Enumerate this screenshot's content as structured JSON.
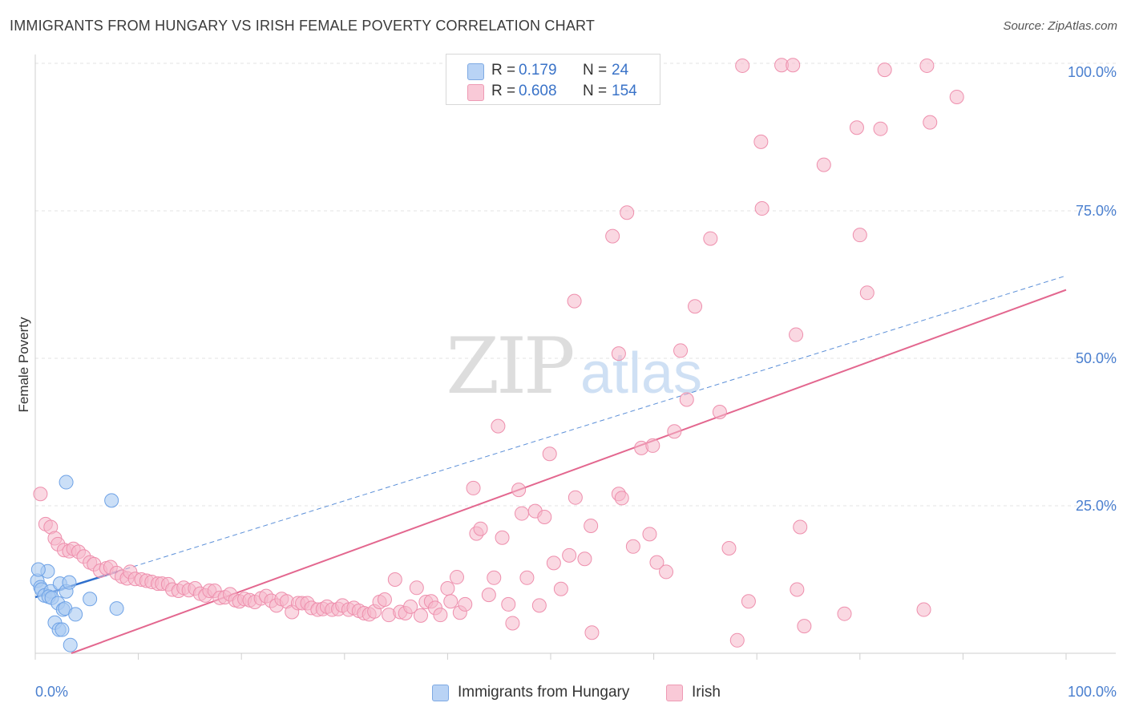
{
  "title": "IMMIGRANTS FROM HUNGARY VS IRISH FEMALE POVERTY CORRELATION CHART",
  "source": "Source: ZipAtlas.com",
  "watermark": {
    "zip": "ZIP",
    "atlas": "atlas"
  },
  "legend_top": [
    {
      "r_label": "R =",
      "r_value": "0.179",
      "n_label": "N =",
      "n_value": "24",
      "color": "#a9c9f2"
    },
    {
      "r_label": "R =",
      "r_value": "0.608",
      "n_label": "N =",
      "n_value": "154",
      "color": "#f5b8cb"
    }
  ],
  "legend_bottom": [
    {
      "label": "Immigrants from Hungary",
      "color": "#a9c9f2"
    },
    {
      "label": "Irish",
      "color": "#f5b8cb"
    }
  ],
  "chart_data": {
    "type": "scatter",
    "title": "IMMIGRANTS FROM HUNGARY VS IRISH FEMALE POVERTY CORRELATION CHART",
    "xlabel": "",
    "ylabel": "Female Poverty",
    "xlim": [
      0,
      100
    ],
    "ylim": [
      0,
      100
    ],
    "x_tick_labels": [
      "0.0%",
      "100.0%"
    ],
    "y_tick_labels": [
      "25.0%",
      "50.0%",
      "75.0%",
      "100.0%"
    ],
    "y_ticks": [
      25,
      50,
      75,
      100
    ],
    "grid": true,
    "legend_placement": "top-center",
    "series": [
      {
        "name": "Immigrants from Hungary",
        "color": "#6ea2e6",
        "fill": "#a9c9f2",
        "points": [
          [
            0.2,
            12.3
          ],
          [
            0.5,
            11.2
          ],
          [
            0.6,
            10.8
          ],
          [
            0.9,
            9.8
          ],
          [
            1.2,
            13.9
          ],
          [
            1.5,
            10.5
          ],
          [
            1.3,
            9.6
          ],
          [
            1.6,
            9.4
          ],
          [
            1.9,
            5.2
          ],
          [
            2.2,
            8.5
          ],
          [
            2.3,
            4.0
          ],
          [
            2.4,
            11.8
          ],
          [
            2.6,
            4.0
          ],
          [
            2.7,
            7.4
          ],
          [
            2.9,
            7.6
          ],
          [
            3.0,
            10.5
          ],
          [
            3.0,
            29.0
          ],
          [
            3.3,
            12.0
          ],
          [
            3.4,
            1.4
          ],
          [
            3.9,
            6.6
          ],
          [
            5.3,
            9.2
          ],
          [
            7.4,
            25.9
          ],
          [
            7.9,
            7.6
          ],
          [
            0.3,
            14.2
          ]
        ],
        "trend": {
          "x": [
            0,
            100
          ],
          "y": [
            9.5,
            64.0
          ],
          "solid_to_x": 8.0
        }
      },
      {
        "name": "Irish",
        "color": "#ee8fad",
        "fill": "#f5b8cb",
        "points": [
          [
            0.5,
            27.0
          ],
          [
            1.0,
            21.9
          ],
          [
            1.5,
            21.4
          ],
          [
            1.9,
            19.5
          ],
          [
            2.2,
            18.5
          ],
          [
            2.8,
            17.5
          ],
          [
            3.3,
            17.3
          ],
          [
            3.7,
            17.7
          ],
          [
            4.2,
            17.2
          ],
          [
            4.7,
            16.4
          ],
          [
            5.3,
            15.4
          ],
          [
            5.7,
            15.1
          ],
          [
            6.3,
            14.0
          ],
          [
            6.9,
            14.4
          ],
          [
            7.3,
            14.6
          ],
          [
            7.9,
            13.6
          ],
          [
            8.4,
            13.0
          ],
          [
            8.9,
            12.7
          ],
          [
            9.2,
            13.8
          ],
          [
            9.7,
            12.6
          ],
          [
            10.3,
            12.5
          ],
          [
            10.8,
            12.3
          ],
          [
            11.3,
            12.1
          ],
          [
            11.9,
            11.8
          ],
          [
            12.3,
            11.8
          ],
          [
            12.9,
            11.7
          ],
          [
            13.3,
            10.8
          ],
          [
            13.9,
            10.6
          ],
          [
            14.4,
            11.1
          ],
          [
            14.9,
            10.7
          ],
          [
            15.5,
            11.0
          ],
          [
            16.0,
            10.1
          ],
          [
            16.5,
            9.8
          ],
          [
            16.9,
            10.6
          ],
          [
            17.4,
            10.6
          ],
          [
            17.9,
            9.4
          ],
          [
            18.4,
            9.5
          ],
          [
            18.9,
            10.0
          ],
          [
            19.4,
            9.0
          ],
          [
            19.8,
            8.8
          ],
          [
            20.3,
            9.2
          ],
          [
            20.8,
            9.0
          ],
          [
            21.3,
            8.7
          ],
          [
            21.9,
            9.3
          ],
          [
            22.4,
            9.7
          ],
          [
            22.9,
            8.9
          ],
          [
            23.4,
            8.1
          ],
          [
            23.9,
            9.2
          ],
          [
            24.4,
            8.8
          ],
          [
            24.9,
            7.0
          ],
          [
            25.5,
            8.5
          ],
          [
            25.9,
            8.5
          ],
          [
            26.4,
            8.5
          ],
          [
            26.8,
            7.7
          ],
          [
            27.4,
            7.4
          ],
          [
            27.9,
            7.5
          ],
          [
            28.3,
            7.9
          ],
          [
            28.8,
            7.4
          ],
          [
            29.4,
            7.5
          ],
          [
            29.8,
            8.1
          ],
          [
            30.4,
            7.4
          ],
          [
            30.9,
            7.7
          ],
          [
            31.4,
            7.2
          ],
          [
            31.9,
            6.8
          ],
          [
            32.4,
            6.6
          ],
          [
            32.9,
            7.1
          ],
          [
            33.4,
            8.7
          ],
          [
            33.9,
            9.1
          ],
          [
            34.3,
            6.5
          ],
          [
            34.9,
            12.5
          ],
          [
            35.4,
            7.0
          ],
          [
            35.9,
            6.8
          ],
          [
            36.4,
            7.9
          ],
          [
            37.0,
            11.1
          ],
          [
            37.4,
            6.4
          ],
          [
            37.9,
            8.7
          ],
          [
            38.4,
            8.8
          ],
          [
            38.8,
            7.7
          ],
          [
            39.3,
            6.5
          ],
          [
            40.0,
            11.0
          ],
          [
            40.3,
            8.8
          ],
          [
            40.9,
            12.9
          ],
          [
            41.2,
            6.9
          ],
          [
            41.7,
            8.3
          ],
          [
            42.5,
            28.0
          ],
          [
            42.8,
            20.3
          ],
          [
            43.2,
            21.1
          ],
          [
            44.0,
            9.9
          ],
          [
            44.5,
            12.8
          ],
          [
            44.9,
            38.5
          ],
          [
            45.3,
            19.6
          ],
          [
            45.9,
            8.3
          ],
          [
            46.3,
            5.1
          ],
          [
            46.9,
            27.7
          ],
          [
            47.2,
            23.7
          ],
          [
            47.7,
            12.8
          ],
          [
            48.5,
            24.1
          ],
          [
            48.9,
            8.1
          ],
          [
            49.4,
            23.1
          ],
          [
            49.9,
            33.8
          ],
          [
            50.3,
            15.3
          ],
          [
            51.0,
            10.9
          ],
          [
            51.8,
            16.6
          ],
          [
            52.3,
            59.7
          ],
          [
            52.4,
            26.4
          ],
          [
            53.3,
            16.0
          ],
          [
            53.9,
            21.6
          ],
          [
            54.0,
            3.5
          ],
          [
            56.0,
            70.7
          ],
          [
            56.6,
            50.8
          ],
          [
            56.6,
            27.0
          ],
          [
            56.9,
            26.3
          ],
          [
            57.4,
            74.7
          ],
          [
            58.0,
            18.1
          ],
          [
            58.8,
            34.8
          ],
          [
            59.6,
            20.2
          ],
          [
            59.9,
            35.2
          ],
          [
            60.3,
            15.4
          ],
          [
            61.2,
            13.8
          ],
          [
            62.0,
            37.6
          ],
          [
            62.6,
            51.3
          ],
          [
            63.2,
            43.0
          ],
          [
            64.0,
            58.8
          ],
          [
            65.5,
            70.3
          ],
          [
            66.4,
            40.9
          ],
          [
            67.3,
            17.8
          ],
          [
            68.1,
            2.2
          ],
          [
            68.6,
            99.6
          ],
          [
            69.2,
            8.8
          ],
          [
            70.5,
            75.4
          ],
          [
            72.4,
            99.7
          ],
          [
            73.5,
            99.7
          ],
          [
            73.8,
            54.0
          ],
          [
            73.9,
            10.8
          ],
          [
            74.2,
            21.4
          ],
          [
            74.6,
            4.6
          ],
          [
            76.5,
            82.8
          ],
          [
            78.5,
            6.7
          ],
          [
            79.7,
            89.1
          ],
          [
            80.0,
            70.9
          ],
          [
            80.7,
            61.1
          ],
          [
            82.0,
            88.9
          ],
          [
            82.4,
            98.9
          ],
          [
            86.2,
            7.4
          ],
          [
            86.5,
            99.6
          ],
          [
            86.8,
            90.0
          ],
          [
            89.4,
            94.3
          ],
          [
            70.4,
            86.7
          ]
        ],
        "trend": {
          "x": [
            3.5,
            100
          ],
          "y": [
            0,
            61.6
          ]
        }
      }
    ]
  }
}
